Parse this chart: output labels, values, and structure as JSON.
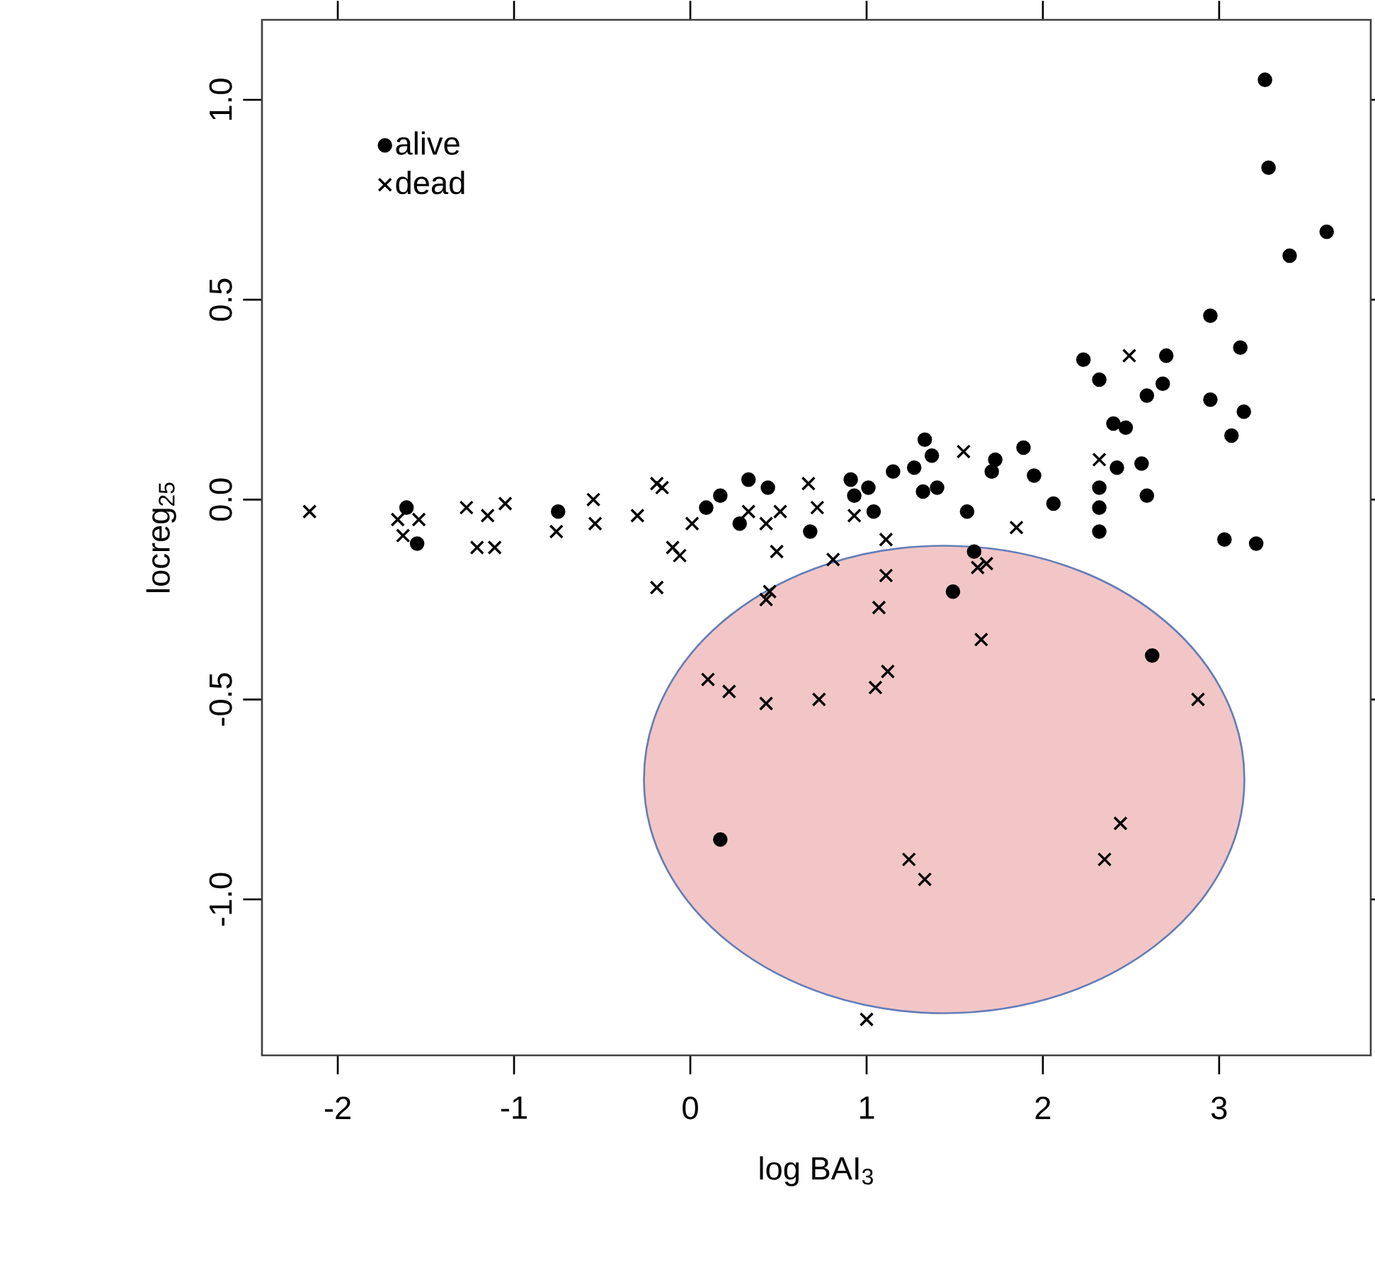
{
  "chart_data": {
    "type": "scatter",
    "xlabel": "log BAI$_{3}$",
    "ylabel": "locreg$_{25}$",
    "xlim": [
      -2.43,
      3.86
    ],
    "ylim": [
      -1.39,
      1.2
    ],
    "xticks": [
      -2,
      -1,
      0,
      1,
      2,
      3
    ],
    "yticks": [
      {
        "value": -1,
        "label": "-1.0"
      },
      {
        "value": -0.5,
        "label": "-0.5"
      },
      {
        "value": 0,
        "label": "0.0"
      },
      {
        "value": 0.5,
        "label": "0.5"
      },
      {
        "value": 1,
        "label": "1.0"
      }
    ],
    "legend": "top left",
    "grid": false,
    "series": [
      {
        "name": "alive",
        "color": "#000000",
        "marker": "circle",
        "x": [
          -1.61,
          -1.55,
          -0.75,
          0.09,
          0.17,
          0.28,
          0.33,
          0.44,
          0.68,
          0.91,
          1.01,
          0.93,
          1.04,
          1.15,
          1.27,
          1.33,
          1.37,
          1.32,
          1.4,
          1.57,
          1.61,
          1.49,
          3.26,
          3.28,
          3.61,
          3.4,
          2.95,
          3.12,
          2.23,
          2.7,
          2.32,
          2.59,
          2.68,
          2.95,
          3.14,
          3.07,
          2.4,
          2.47,
          2.42,
          2.56,
          2.59,
          2.32,
          2.32,
          2.32,
          3.03,
          3.21,
          2.06,
          1.95,
          1.89,
          1.73,
          1.71,
          0.17,
          2.62
        ],
        "values": [
          -0.02,
          -0.11,
          -0.03,
          -0.02,
          0.01,
          -0.06,
          0.05,
          0.03,
          -0.08,
          0.05,
          0.03,
          0.01,
          -0.03,
          0.07,
          0.08,
          0.15,
          0.11,
          0.02,
          0.03,
          -0.03,
          -0.13,
          -0.23,
          1.05,
          0.83,
          0.67,
          0.61,
          0.46,
          0.38,
          0.35,
          0.36,
          0.3,
          0.26,
          0.29,
          0.25,
          0.22,
          0.16,
          0.19,
          0.18,
          0.08,
          0.09,
          0.01,
          0.03,
          -0.02,
          -0.08,
          -0.1,
          -0.11,
          -0.01,
          0.06,
          0.13,
          0.1,
          0.07,
          -0.85,
          -0.39
        ]
      },
      {
        "name": "dead",
        "color": "#000000",
        "marker": "cross",
        "x": [
          -2.16,
          -1.66,
          -1.54,
          -1.63,
          -1.27,
          -1.15,
          -1.05,
          -1.21,
          -1.11,
          -0.76,
          -0.55,
          -0.54,
          -0.3,
          -0.19,
          -0.19,
          -0.16,
          -0.1,
          -0.06,
          0.01,
          0.33,
          0.43,
          0.51,
          0.49,
          0.67,
          0.72,
          0.93,
          1.55,
          1.11,
          0.81,
          0.45,
          0.43,
          1.11,
          1.07,
          1.65,
          0.1,
          0.22,
          0.43,
          0.73,
          1.12,
          1.05,
          1.63,
          1.68,
          2.49,
          2.32,
          1.85,
          1.0,
          1.24,
          1.33,
          2.88,
          2.44,
          2.35
        ],
        "values": [
          -0.03,
          -0.05,
          -0.05,
          -0.09,
          -0.02,
          -0.04,
          -0.01,
          -0.12,
          -0.12,
          -0.08,
          0.0,
          -0.06,
          -0.04,
          0.04,
          -0.22,
          0.03,
          -0.12,
          -0.14,
          -0.06,
          -0.03,
          -0.06,
          -0.03,
          -0.13,
          0.04,
          -0.02,
          -0.04,
          0.12,
          -0.1,
          -0.15,
          -0.23,
          -0.25,
          -0.19,
          -0.27,
          -0.35,
          -0.45,
          -0.48,
          -0.51,
          -0.5,
          -0.43,
          -0.47,
          -0.17,
          -0.16,
          0.36,
          0.1,
          -0.07,
          -1.3,
          -0.9,
          -0.95,
          -0.5,
          -0.81,
          -0.9
        ]
      }
    ]
  }
}
